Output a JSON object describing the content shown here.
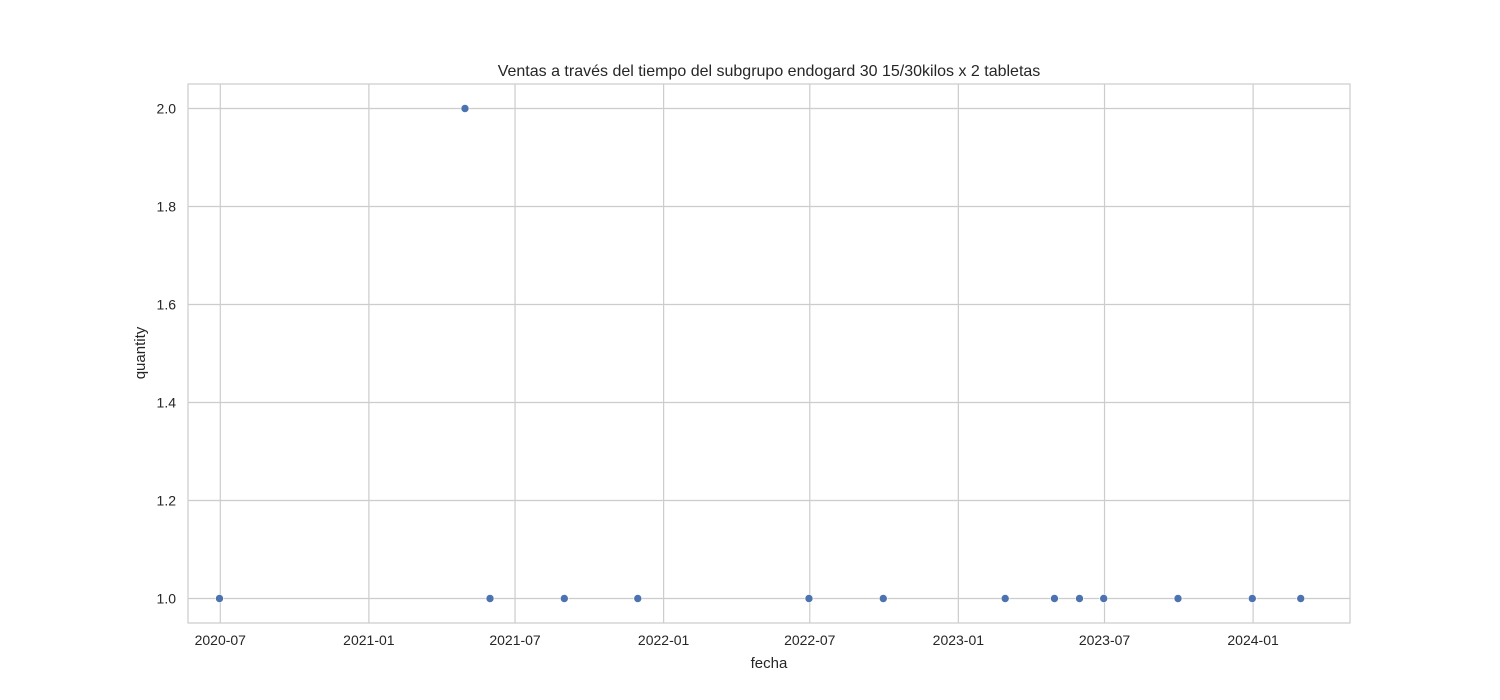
{
  "chart_data": {
    "type": "scatter",
    "title": "Ventas a través del tiempo del subgrupo endogard 30 15/30kilos x 2 tabletas",
    "xlabel": "fecha",
    "ylabel": "quantity",
    "xlim": [
      "2020-05-22",
      "2024-04-30"
    ],
    "ylim": [
      0.95,
      2.05
    ],
    "x_ticks": [
      "2020-07",
      "2021-01",
      "2021-07",
      "2022-01",
      "2022-07",
      "2023-01",
      "2023-07",
      "2024-01"
    ],
    "y_ticks": [
      1.0,
      1.2,
      1.4,
      1.6,
      1.8,
      2.0
    ],
    "y_tick_labels": [
      "1.0",
      "1.2",
      "1.4",
      "1.6",
      "1.8",
      "2.0"
    ],
    "grid": true,
    "marker_color": "#4c72b0",
    "points": [
      {
        "x": "2020-06-30",
        "y": 1
      },
      {
        "x": "2021-04-30",
        "y": 2
      },
      {
        "x": "2021-05-31",
        "y": 1
      },
      {
        "x": "2021-08-31",
        "y": 1
      },
      {
        "x": "2021-11-30",
        "y": 1
      },
      {
        "x": "2022-06-30",
        "y": 1
      },
      {
        "x": "2022-09-30",
        "y": 1
      },
      {
        "x": "2023-02-28",
        "y": 1
      },
      {
        "x": "2023-04-30",
        "y": 1
      },
      {
        "x": "2023-05-31",
        "y": 1
      },
      {
        "x": "2023-06-30",
        "y": 1
      },
      {
        "x": "2023-09-30",
        "y": 1
      },
      {
        "x": "2023-12-31",
        "y": 1
      },
      {
        "x": "2024-02-29",
        "y": 1
      }
    ]
  }
}
